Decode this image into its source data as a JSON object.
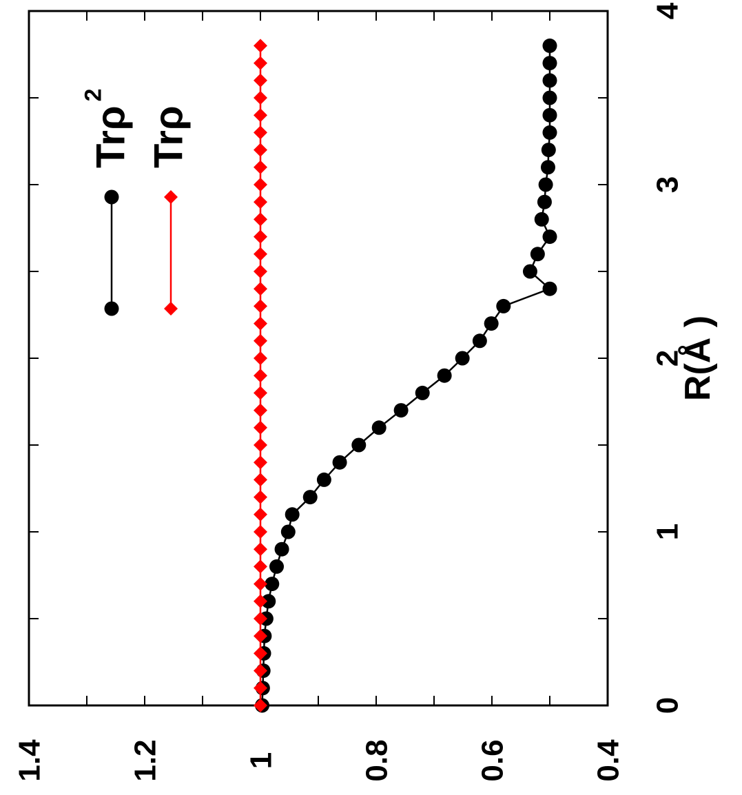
{
  "chart_data": {
    "type": "line",
    "title": "",
    "xlabel": "R(Å )",
    "ylabel": "",
    "xlim": [
      0,
      4
    ],
    "ylim": [
      0.4,
      1.4
    ],
    "xticks": [
      "0",
      "1",
      "2",
      "3",
      "4"
    ],
    "yticks": [
      "0.4",
      "0.6",
      "0.8",
      "1",
      "1.2",
      "1.4"
    ],
    "grid": false,
    "legend_position": "top-right",
    "rotation": "figure rotated 90 degrees clockwise",
    "series": [
      {
        "name": "Trρ",
        "name_sup": "2",
        "color": "#000000",
        "marker": "circle",
        "x": [
          0.0,
          0.1,
          0.2,
          0.3,
          0.4,
          0.5,
          0.6,
          0.7,
          0.8,
          0.9,
          1.0,
          1.1,
          1.2,
          1.3,
          1.4,
          1.5,
          1.6,
          1.7,
          1.8,
          1.9,
          2.0,
          2.1,
          2.2,
          2.3,
          2.4,
          2.5,
          2.6,
          2.7,
          2.8,
          2.9,
          3.0,
          3.1,
          3.2,
          3.3,
          3.4,
          3.5,
          3.6,
          3.7,
          3.8
        ],
        "y": [
          0.997,
          0.996,
          0.995,
          0.994,
          0.993,
          0.99,
          0.986,
          0.98,
          0.972,
          0.963,
          0.952,
          0.945,
          0.914,
          0.89,
          0.863,
          0.83,
          0.795,
          0.757,
          0.72,
          0.682,
          0.651,
          0.621,
          0.601,
          0.58,
          0.5,
          0.534,
          0.521,
          0.5,
          0.514,
          0.509,
          0.507,
          0.503,
          0.502,
          0.5,
          0.5,
          0.5,
          0.5,
          0.5,
          0.5
        ]
      },
      {
        "name": "Trρ",
        "name_sup": "",
        "color": "#ff0000",
        "marker": "diamond",
        "x": [
          0.0,
          0.1,
          0.2,
          0.3,
          0.4,
          0.5,
          0.6,
          0.7,
          0.8,
          0.9,
          1.0,
          1.1,
          1.2,
          1.3,
          1.4,
          1.5,
          1.6,
          1.7,
          1.8,
          1.9,
          2.0,
          2.1,
          2.2,
          2.3,
          2.4,
          2.5,
          2.6,
          2.7,
          2.8,
          2.9,
          3.0,
          3.1,
          3.2,
          3.3,
          3.4,
          3.5,
          3.6,
          3.7,
          3.8
        ],
        "y": [
          1.0,
          1.0,
          1.0,
          1.0,
          1.0,
          1.0,
          1.0,
          1.0,
          1.0,
          1.0,
          1.0,
          1.0,
          1.0,
          1.0,
          1.0,
          1.0,
          1.0,
          1.0,
          1.0,
          1.0,
          1.0,
          1.0,
          1.0,
          1.0,
          1.0,
          1.0,
          1.0,
          1.0,
          1.0,
          1.0,
          1.0,
          1.0,
          1.0,
          1.0,
          1.0,
          1.0,
          1.0,
          1.0,
          1.0
        ]
      }
    ]
  }
}
